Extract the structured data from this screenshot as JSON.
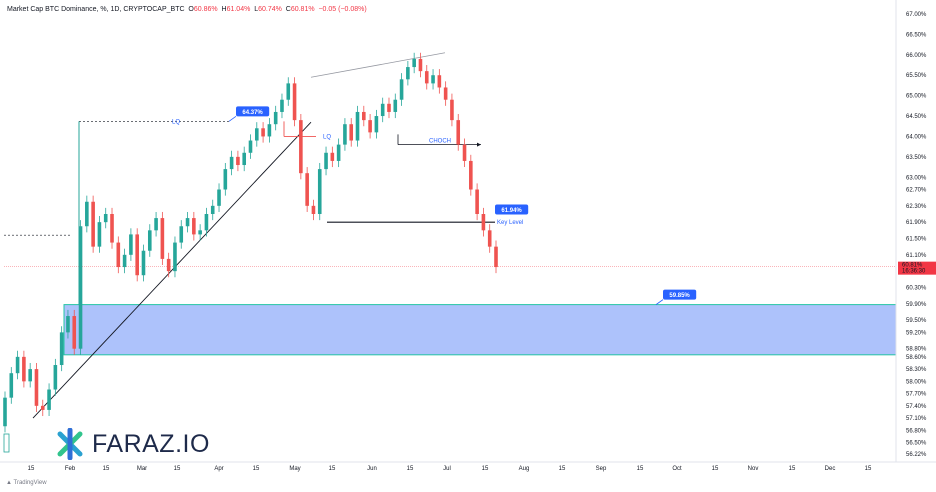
{
  "header": {
    "symbol": "Market Cap BTC Dominance, %, 1D, CRYPTOCAP_BTC",
    "o_label": "O",
    "o_value": "60.86%",
    "h_label": "H",
    "h_value": "61.04%",
    "l_label": "L",
    "l_value": "60.74%",
    "c_label": "C",
    "c_value": "60.81%",
    "change": "−0.05 (−0.08%)"
  },
  "footer": {
    "brand": "TradingView"
  },
  "logo": {
    "text": "FARAZ.IO"
  },
  "price_tag": {
    "value": "60.81%",
    "timer": "16:36:30"
  },
  "colors": {
    "up": "#26a69a",
    "down": "#ef5350",
    "zone_fill": "#a4bbfb",
    "zone_border": "#23c4a4",
    "label_bg": "#2962ff"
  },
  "chart_data": {
    "type": "candlestick",
    "title": "",
    "ylim": [
      56.0,
      67.2
    ],
    "y_ticks": [
      "67.00%",
      "66.50%",
      "66.00%",
      "65.50%",
      "65.00%",
      "64.50%",
      "64.00%",
      "63.50%",
      "63.00%",
      "62.70%",
      "62.30%",
      "61.90%",
      "61.50%",
      "61.10%",
      "60.70%",
      "60.30%",
      "59.90%",
      "59.50%",
      "59.20%",
      "58.80%",
      "58.60%",
      "58.30%",
      "58.00%",
      "57.70%",
      "57.40%",
      "57.10%",
      "56.80%",
      "56.50%",
      "56.22%"
    ],
    "x_ticks": [
      "15",
      "Feb",
      "15",
      "Mar",
      "15",
      "Apr",
      "15",
      "May",
      "15",
      "Jun",
      "15",
      "Jul",
      "15",
      "Aug",
      "15",
      "Sep",
      "15",
      "Oct",
      "15",
      "Nov",
      "15",
      "Dec",
      "15"
    ],
    "series": [
      {
        "values": [
          [
            56.9,
            57.6
          ],
          [
            57.6,
            58.2
          ],
          [
            58.2,
            58.6
          ],
          [
            58.6,
            58.0
          ],
          [
            58.0,
            58.3
          ],
          [
            58.3,
            57.4
          ],
          [
            57.4,
            57.3
          ],
          [
            57.3,
            57.8
          ],
          [
            57.8,
            58.4
          ],
          [
            58.4,
            59.2
          ],
          [
            59.2,
            59.6
          ],
          [
            59.6,
            58.8
          ],
          [
            58.8,
            61.8
          ],
          [
            61.8,
            62.4
          ],
          [
            62.4,
            61.3
          ],
          [
            61.3,
            61.9
          ],
          [
            61.9,
            62.1
          ],
          [
            62.1,
            61.4
          ],
          [
            61.4,
            60.8
          ],
          [
            60.8,
            61.1
          ],
          [
            61.1,
            61.6
          ],
          [
            61.6,
            60.6
          ],
          [
            60.6,
            61.2
          ],
          [
            61.2,
            61.7
          ],
          [
            61.7,
            62.0
          ],
          [
            62.0,
            61.0
          ],
          [
            61.0,
            60.7
          ],
          [
            60.7,
            61.4
          ],
          [
            61.4,
            61.8
          ],
          [
            61.8,
            62.0
          ],
          [
            62.0,
            61.6
          ],
          [
            61.6,
            61.7
          ],
          [
            61.7,
            62.1
          ],
          [
            62.1,
            62.3
          ],
          [
            62.3,
            62.7
          ],
          [
            62.7,
            63.2
          ],
          [
            63.2,
            63.5
          ],
          [
            63.5,
            63.3
          ],
          [
            63.3,
            63.6
          ],
          [
            63.6,
            63.9
          ],
          [
            63.9,
            64.2
          ],
          [
            64.2,
            64.0
          ],
          [
            64.0,
            64.3
          ],
          [
            64.3,
            64.6
          ],
          [
            64.6,
            64.9
          ],
          [
            64.9,
            65.3
          ],
          [
            65.3,
            64.4
          ],
          [
            64.4,
            63.1
          ],
          [
            63.1,
            62.3
          ],
          [
            62.3,
            62.1
          ],
          [
            62.1,
            63.2
          ],
          [
            63.2,
            63.6
          ],
          [
            63.6,
            63.4
          ],
          [
            63.4,
            63.8
          ],
          [
            63.8,
            64.3
          ],
          [
            64.3,
            63.9
          ],
          [
            63.9,
            64.6
          ],
          [
            64.6,
            64.4
          ],
          [
            64.4,
            64.1
          ],
          [
            64.1,
            64.5
          ],
          [
            64.5,
            64.8
          ],
          [
            64.8,
            64.6
          ],
          [
            64.6,
            64.9
          ],
          [
            64.9,
            65.4
          ],
          [
            65.4,
            65.7
          ],
          [
            65.7,
            65.9
          ],
          [
            65.9,
            65.6
          ],
          [
            65.6,
            65.3
          ],
          [
            65.3,
            65.5
          ],
          [
            65.5,
            65.2
          ],
          [
            65.2,
            64.9
          ],
          [
            64.9,
            64.4
          ],
          [
            64.4,
            63.8
          ],
          [
            63.8,
            63.4
          ],
          [
            63.4,
            62.7
          ],
          [
            62.7,
            62.1
          ],
          [
            62.1,
            61.7
          ],
          [
            61.7,
            61.3
          ],
          [
            61.3,
            60.8
          ]
        ]
      }
    ],
    "annotations": [
      {
        "type": "label",
        "text": "64.37%"
      },
      {
        "type": "label",
        "text": "61.94%"
      },
      {
        "type": "label",
        "text": "59.85%"
      },
      {
        "type": "text",
        "text": "LQ"
      },
      {
        "type": "text",
        "text": "LQ"
      },
      {
        "type": "text",
        "text": "CHOCH"
      },
      {
        "type": "text",
        "text": "Key Level"
      }
    ],
    "zone": {
      "from": 58.65,
      "to": 59.88
    }
  }
}
